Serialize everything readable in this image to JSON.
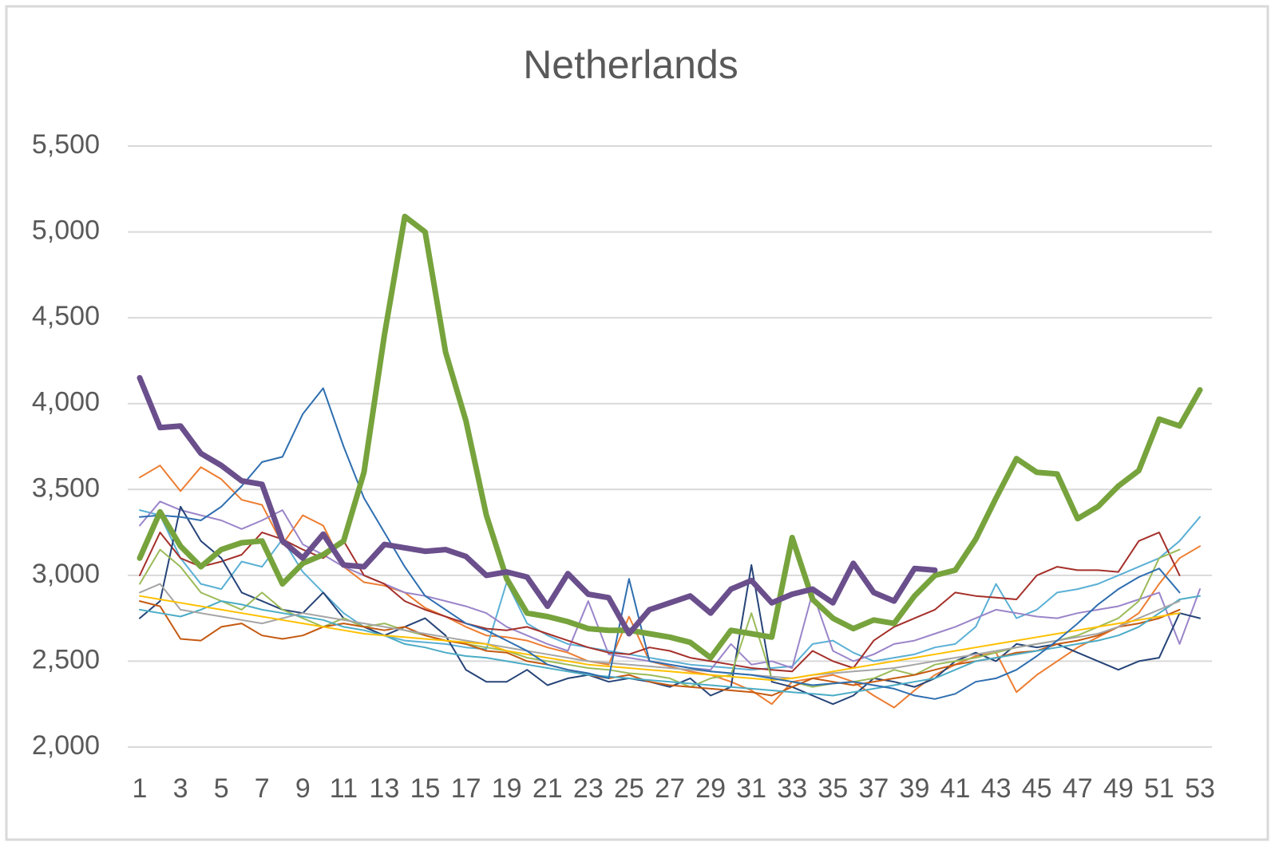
{
  "chart_data": {
    "type": "line",
    "title": "Netherlands",
    "categories": [
      1,
      null,
      3,
      null,
      5,
      null,
      7,
      null,
      9,
      null,
      11,
      null,
      13,
      null,
      15,
      null,
      17,
      null,
      19,
      null,
      21,
      null,
      23,
      null,
      25,
      null,
      27,
      null,
      29,
      null,
      31,
      null,
      33,
      null,
      35,
      null,
      37,
      null,
      39,
      null,
      41,
      null,
      43,
      null,
      45,
      null,
      47,
      null,
      49,
      null,
      51,
      null,
      53
    ],
    "ylim": [
      2000,
      5500
    ],
    "yticks": [
      {
        "value": 2000,
        "label": "2,000"
      },
      {
        "value": 2500,
        "label": "2,500"
      },
      {
        "value": 3000,
        "label": "3,000"
      },
      {
        "value": 3500,
        "label": "3,500"
      },
      {
        "value": 4000,
        "label": "4,000"
      },
      {
        "value": 4500,
        "label": "4,500"
      },
      {
        "value": 5000,
        "label": "5,000"
      },
      {
        "value": 5500,
        "label": "5,500"
      }
    ],
    "grid": true,
    "series": [
      {
        "color": "#ed7d31",
        "width": 2,
        "values": [
          3570,
          3640,
          3490,
          3630,
          3560,
          3440,
          3410,
          3180,
          3350,
          3290,
          3050,
          2960,
          2940,
          2900,
          2810,
          2760,
          2700,
          2650,
          2640,
          2620,
          2580,
          2550,
          2500,
          2480,
          2760,
          2500,
          2470,
          2440,
          2420,
          2380,
          2330,
          2250,
          2380,
          2400,
          2420,
          2380,
          2300,
          2230,
          2330,
          2420,
          2480,
          2530,
          2550,
          2320,
          2420,
          2500,
          2580,
          2640,
          2700,
          2780,
          2950,
          3100,
          3170
        ]
      },
      {
        "color": "#5bb0d5",
        "width": 2,
        "values": [
          3380,
          3350,
          3100,
          2950,
          2920,
          3080,
          3050,
          3210,
          3020,
          2900,
          2780,
          2700,
          2650,
          2620,
          2610,
          2600,
          2580,
          2570,
          2960,
          2720,
          2650,
          2600,
          2580,
          2560,
          2540,
          2520,
          2500,
          2480,
          2470,
          2460,
          2450,
          2460,
          2470,
          2600,
          2620,
          2550,
          2500,
          2520,
          2540,
          2580,
          2600,
          2700,
          2950,
          2750,
          2800,
          2900,
          2920,
          2950,
          3000,
          3050,
          3100,
          3200,
          3340
        ]
      },
      {
        "color": "#9a85c9",
        "width": 2,
        "values": [
          3290,
          3430,
          3380,
          3350,
          3320,
          3270,
          3320,
          3380,
          3180,
          3120,
          3050,
          3000,
          2950,
          2900,
          2880,
          2850,
          2820,
          2780,
          2700,
          2650,
          2600,
          2560,
          2850,
          2540,
          2520,
          2500,
          2480,
          2460,
          2450,
          2600,
          2480,
          2500,
          2460,
          2900,
          2560,
          2500,
          2540,
          2600,
          2620,
          2660,
          2700,
          2750,
          2800,
          2780,
          2760,
          2750,
          2780,
          2800,
          2820,
          2860,
          2900,
          2600,
          2920
        ]
      },
      {
        "color": "#a5302a",
        "width": 2,
        "values": [
          3000,
          3250,
          3100,
          3050,
          3080,
          3120,
          3250,
          3210,
          3150,
          3100,
          3200,
          3000,
          2950,
          2850,
          2800,
          2760,
          2720,
          2690,
          2680,
          2700,
          2660,
          2620,
          2580,
          2550,
          2540,
          2580,
          2560,
          2520,
          2500,
          2480,
          2460,
          2450,
          2440,
          2560,
          2500,
          2460,
          2620,
          2700,
          2750,
          2800,
          2900,
          2880,
          2870,
          2860,
          3000,
          3050,
          3030,
          3030,
          3020,
          3200,
          3250,
          3000,
          null
        ]
      },
      {
        "color": "#264478",
        "width": 2,
        "values": [
          2750,
          2850,
          3400,
          3200,
          3100,
          2900,
          2850,
          2800,
          2780,
          2900,
          2750,
          2700,
          2650,
          2700,
          2750,
          2650,
          2450,
          2380,
          2380,
          2450,
          2360,
          2400,
          2420,
          2380,
          2400,
          2380,
          2350,
          2400,
          2300,
          2350,
          3060,
          2380,
          2350,
          2300,
          2250,
          2300,
          2400,
          2380,
          2350,
          2400,
          2500,
          2550,
          2500,
          2600,
          2580,
          2600,
          2550,
          2500,
          2450,
          2500,
          2520,
          2780,
          2750
        ]
      },
      {
        "color": "#9bbb59",
        "width": 2,
        "values": [
          2950,
          3150,
          3050,
          2900,
          2850,
          2800,
          2900,
          2800,
          2750,
          2700,
          2750,
          2700,
          2720,
          2680,
          2650,
          2620,
          2600,
          2580,
          2560,
          2520,
          2500,
          2480,
          2460,
          2450,
          2430,
          2420,
          2400,
          2350,
          2400,
          2420,
          2780,
          2400,
          2380,
          2350,
          2370,
          2380,
          2400,
          2450,
          2420,
          2480,
          2500,
          2520,
          2550,
          2580,
          2600,
          2620,
          2650,
          2700,
          2750,
          2850,
          3100,
          3150,
          null
        ]
      },
      {
        "color": "#c55a11",
        "width": 2,
        "values": [
          2850,
          2820,
          2630,
          2620,
          2700,
          2720,
          2650,
          2630,
          2650,
          2700,
          2720,
          2700,
          2680,
          2700,
          2650,
          2620,
          2600,
          2560,
          2550,
          2500,
          2480,
          2450,
          2420,
          2400,
          2420,
          2380,
          2360,
          2350,
          2340,
          2330,
          2320,
          2300,
          2350,
          2400,
          2380,
          2360,
          2380,
          2400,
          2420,
          2450,
          2480,
          2500,
          2520,
          2550,
          2560,
          2600,
          2620,
          2650,
          2700,
          2720,
          2750,
          2800,
          null
        ]
      },
      {
        "color": "#4bacc6",
        "width": 2,
        "values": [
          2800,
          2780,
          2760,
          2800,
          2850,
          2830,
          2800,
          2780,
          2760,
          2740,
          2700,
          2680,
          2650,
          2600,
          2580,
          2550,
          2530,
          2520,
          2500,
          2480,
          2460,
          2440,
          2420,
          2410,
          2400,
          2390,
          2380,
          2370,
          2360,
          2350,
          2340,
          2330,
          2320,
          2310,
          2300,
          2320,
          2340,
          2360,
          2380,
          2400,
          2450,
          2500,
          2520,
          2540,
          2560,
          2580,
          2600,
          2620,
          2650,
          2700,
          2780,
          2860,
          2880
        ]
      },
      {
        "color": "#a5a5a5",
        "width": 2,
        "values": [
          2900,
          2950,
          2800,
          2780,
          2760,
          2740,
          2720,
          2750,
          2780,
          2760,
          2740,
          2720,
          2700,
          2680,
          2660,
          2640,
          2620,
          2600,
          2580,
          2560,
          2540,
          2520,
          2500,
          2490,
          2480,
          2470,
          2460,
          2450,
          2440,
          2430,
          2420,
          2410,
          2400,
          2420,
          2430,
          2440,
          2450,
          2460,
          2480,
          2500,
          2520,
          2540,
          2560,
          2580,
          2600,
          2620,
          2640,
          2660,
          2700,
          2750,
          2800,
          2850,
          null
        ]
      },
      {
        "color": "#ffc000",
        "width": 2,
        "values": [
          2880,
          2860,
          2840,
          2820,
          2800,
          2780,
          2760,
          2740,
          2720,
          2700,
          2680,
          2660,
          2650,
          2640,
          2630,
          2620,
          2610,
          2600,
          2560,
          2540,
          2520,
          2500,
          2480,
          2470,
          2460,
          2450,
          2440,
          2430,
          2420,
          2410,
          2400,
          2390,
          2400,
          2420,
          2440,
          2460,
          2480,
          2500,
          2520,
          2540,
          2560,
          2580,
          2600,
          2620,
          2640,
          2660,
          2680,
          2700,
          2720,
          2740,
          2760,
          2780,
          null
        ]
      },
      {
        "color": "#2e6eb0",
        "width": 2,
        "values": [
          3340,
          3350,
          3340,
          3320,
          3400,
          3520,
          3660,
          3690,
          3940,
          4090,
          3750,
          3450,
          3250,
          3050,
          2880,
          2800,
          2720,
          2680,
          2620,
          2560,
          2480,
          2450,
          2430,
          2400,
          2980,
          2500,
          2480,
          2460,
          2440,
          2430,
          2420,
          2400,
          2380,
          2360,
          2370,
          2380,
          2360,
          2340,
          2300,
          2280,
          2310,
          2380,
          2400,
          2450,
          2530,
          2620,
          2720,
          2830,
          2920,
          2990,
          3040,
          2900,
          null
        ]
      },
      {
        "color": "#77a33d",
        "width": 7,
        "values": [
          3100,
          3370,
          3170,
          3050,
          3150,
          3190,
          3200,
          2950,
          3070,
          3120,
          3200,
          3600,
          4400,
          5090,
          5000,
          4300,
          3900,
          3350,
          2980,
          2780,
          2760,
          2730,
          2690,
          2680,
          2680,
          2660,
          2640,
          2610,
          2520,
          2680,
          2660,
          2640,
          3220,
          2860,
          2750,
          2690,
          2740,
          2720,
          2880,
          3000,
          3030,
          3210,
          3450,
          3680,
          3600,
          3590,
          3330,
          3400,
          3520,
          3610,
          3910,
          3870,
          4080
        ]
      },
      {
        "color": "#6a4f8c",
        "width": 7,
        "values": [
          4150,
          3860,
          3870,
          3710,
          3640,
          3550,
          3530,
          3200,
          3100,
          3240,
          3060,
          3050,
          3180,
          3160,
          3140,
          3150,
          3110,
          3000,
          3020,
          2990,
          2820,
          3010,
          2890,
          2870,
          2660,
          2800,
          2840,
          2880,
          2780,
          2920,
          2970,
          2840,
          2890,
          2920,
          2840,
          3070,
          2900,
          2850,
          3040,
          3030,
          null,
          null,
          null,
          null,
          null,
          null,
          null,
          null,
          null,
          null,
          null,
          null,
          null
        ]
      }
    ]
  }
}
